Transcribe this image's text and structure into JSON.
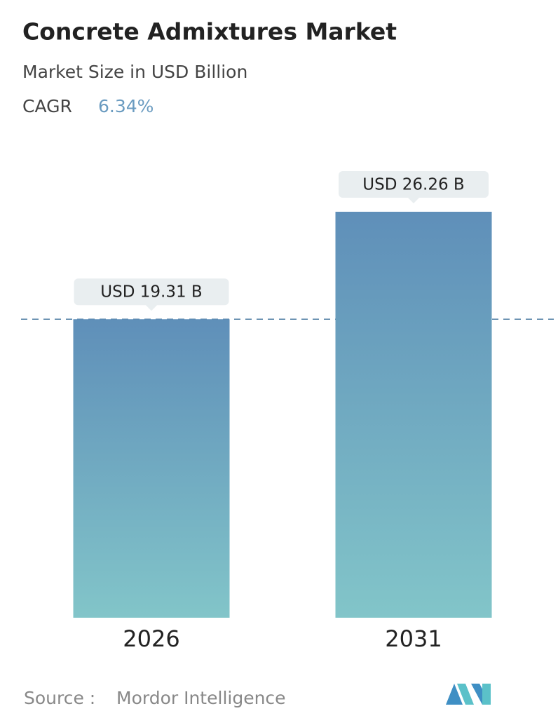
{
  "chart_data": {
    "type": "bar",
    "title": "Concrete Admixtures Market",
    "subtitle": "Market Size in USD Billion",
    "cagr_label": "CAGR",
    "cagr": "6.34%",
    "categories": [
      "2026",
      "2031"
    ],
    "values": [
      19.31,
      26.26
    ],
    "value_labels": [
      "USD 19.31 B",
      "USD 26.26 B"
    ],
    "color_top": "#5f8fb9",
    "color_bottom": "#82c5c9",
    "source_label": "Source :",
    "source": "Mordor Intelligence"
  }
}
